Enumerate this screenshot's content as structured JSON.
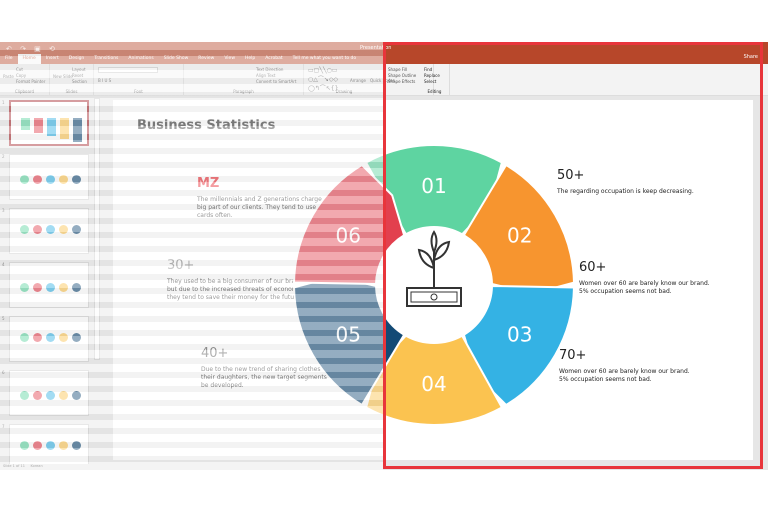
{
  "window": {
    "title": "Presentation",
    "qat": "↶ ↷ ▣ ⟲"
  },
  "tabs": [
    "File",
    "Home",
    "Insert",
    "Design",
    "Transitions",
    "Animations",
    "Slide Show",
    "Review",
    "View",
    "Help",
    "Acrobat"
  ],
  "active_tab": "Home",
  "tell_me": "Tell me what you want to do",
  "share": "Share",
  "ribbon": {
    "clipboard": {
      "label": "Clipboard",
      "paste": "Paste",
      "cut": "Cut",
      "copy": "Copy",
      "format_painter": "Format Painter"
    },
    "slides": {
      "label": "Slides",
      "new_slide": "New Slide",
      "layout": "Layout",
      "reset": "Reset",
      "section": "Section"
    },
    "font": {
      "label": "Font"
    },
    "paragraph": {
      "label": "Paragraph",
      "text_direction": "Text Direction",
      "align_text": "Align Text",
      "smartart": "Convert to SmartArt"
    },
    "drawing": {
      "label": "Drawing",
      "arrange": "Arrange",
      "quick_styles": "Quick Styles",
      "shape_fill": "Shape Fill",
      "shape_outline": "Shape Outline",
      "shape_effects": "Shape Effects"
    },
    "editing": {
      "label": "Editing",
      "find": "Find",
      "replace": "Replace",
      "select": "Select"
    }
  },
  "thumbnails": [
    "1",
    "2",
    "3",
    "4",
    "5",
    "6",
    "7"
  ],
  "status": {
    "slide": "Slide 1 of 11",
    "language": "Korean"
  },
  "slide": {
    "title": "Business Statistics",
    "stats": [
      {
        "heading": "MZ",
        "text": "The millennials and Z generations charge a big part of our clients. They tend to use debit cards often.",
        "color": "#e8262e"
      },
      {
        "heading": "30+",
        "text": "They used to be a big consumer of our brand, but due to the increased  threats of economy, they tend to save their money for the future.",
        "color": "#888888"
      },
      {
        "heading": "40+",
        "text": "Due to the new trend of sharing clothes with their daughters, the new target segments can be developed.",
        "color": "#555555"
      },
      {
        "heading": "50+",
        "text": "The regarding occupation is keep decreasing.",
        "color": "#222222"
      },
      {
        "heading": "60+",
        "text": "Women over 60 are barely know our brand. 5% occupation seems not bad.",
        "color": "#222222"
      },
      {
        "heading": "70+",
        "text": "Women over 60 are barely know our brand. 5% occupation seems not bad.",
        "color": "#222222"
      }
    ],
    "segments": [
      {
        "label": "01",
        "color": "#5ed4a1"
      },
      {
        "label": "02",
        "color": "#f7952f"
      },
      {
        "label": "03",
        "color": "#34b2e4"
      },
      {
        "label": "04",
        "color": "#fbc350"
      },
      {
        "label": "05",
        "color": "#134a75"
      },
      {
        "label": "06",
        "color": "#e2404e"
      }
    ],
    "center_icon": "money-plant-icon"
  },
  "highlight_color": "#e8353b"
}
